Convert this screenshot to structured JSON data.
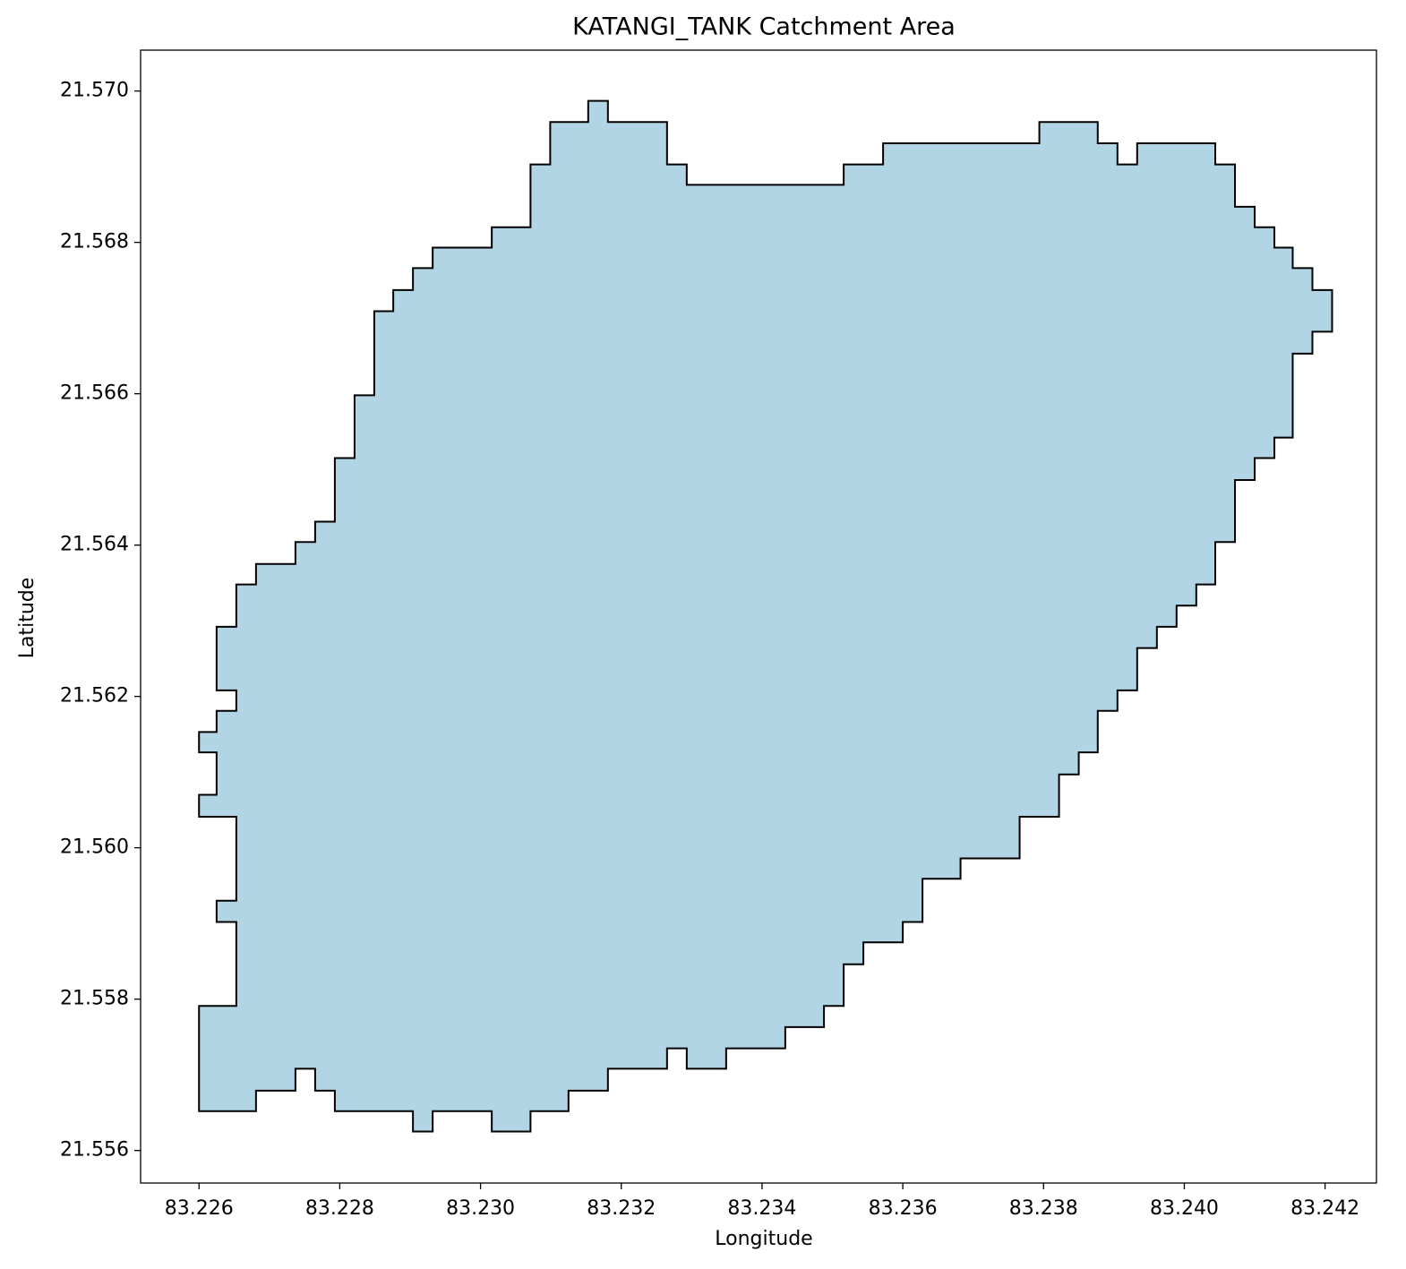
{
  "chart_data": {
    "type": "polygon",
    "title": "KATANGI_TANK Catchment Area",
    "x_label": "Longitude",
    "y_label": "Latitude",
    "fill_color": "#b2d5e5",
    "edge_color": "#000000",
    "grid": false,
    "xlim": [
      83.22517,
      83.24273
    ],
    "ylim": [
      21.55557,
      21.57054
    ],
    "xticks": [
      83.226,
      83.228,
      {
        "value": 83.23,
        "label": "83.230"
      },
      83.232,
      83.234,
      83.236,
      83.238,
      {
        "value": 83.24,
        "label": "83.240"
      },
      83.242
    ],
    "yticks": [
      21.556,
      21.558,
      {
        "value": 21.56,
        "label": "21.560"
      },
      21.562,
      21.564,
      21.566,
      21.568,
      {
        "value": 21.57,
        "label": "21.570"
      }
    ],
    "x": [
      83.226,
      83.226,
      83.22653,
      83.22653,
      83.22625,
      83.22625,
      83.22653,
      83.22653,
      83.226,
      83.226,
      83.22625,
      83.22625,
      83.226,
      83.226,
      83.22625,
      83.22625,
      83.22653,
      83.22653,
      83.22625,
      83.22625,
      83.22653,
      83.22653,
      83.22681,
      83.22681,
      83.22737,
      83.22737,
      83.22765,
      83.22765,
      83.22793,
      83.22793,
      83.22821,
      83.22821,
      83.22849,
      83.22849,
      83.22876,
      83.22876,
      83.22904,
      83.22904,
      83.22932,
      83.22932,
      83.23016,
      83.23016,
      83.23071,
      83.23071,
      83.23099,
      83.23099,
      83.23153,
      83.23153,
      83.23181,
      83.23181,
      83.23265,
      83.23265,
      83.23293,
      83.23293,
      83.23516,
      83.23516,
      83.23572,
      83.23572,
      83.23794,
      83.23794,
      83.23877,
      83.23877,
      83.23905,
      83.23905,
      83.23933,
      83.23933,
      83.24044,
      83.24044,
      83.24072,
      83.24072,
      83.241,
      83.241,
      83.24128,
      83.24128,
      83.24154,
      83.24154,
      83.24182,
      83.24182,
      83.2421,
      83.2421,
      83.24182,
      83.24182,
      83.24154,
      83.24154,
      83.24128,
      83.24128,
      83.241,
      83.241,
      83.24072,
      83.24072,
      83.24044,
      83.24044,
      83.24017,
      83.24017,
      83.23989,
      83.23989,
      83.23961,
      83.23961,
      83.23933,
      83.23933,
      83.23905,
      83.23905,
      83.23877,
      83.23877,
      83.2385,
      83.2385,
      83.23822,
      83.23822,
      83.23766,
      83.23766,
      83.23682,
      83.23682,
      83.23628,
      83.23628,
      83.236,
      83.236,
      83.23544,
      83.23544,
      83.23516,
      83.23516,
      83.23488,
      83.23488,
      83.23433,
      83.23433,
      83.23349,
      83.23349,
      83.23293,
      83.23293,
      83.23265,
      83.23265,
      83.23181,
      83.23181,
      83.23125,
      83.23125,
      83.23071,
      83.23071,
      83.23016,
      83.23016,
      83.22932,
      83.22932,
      83.22904,
      83.22904,
      83.22793,
      83.22793,
      83.22765,
      83.22765,
      83.22737,
      83.22737,
      83.22681,
      83.22681
    ],
    "values": [
      21.55652,
      21.55791,
      21.55791,
      21.55902,
      21.55902,
      21.5593,
      21.5593,
      21.56041,
      21.56041,
      21.5607,
      21.5607,
      21.56126,
      21.56126,
      21.56153,
      21.56153,
      21.56181,
      21.56181,
      21.56208,
      21.56208,
      21.56292,
      21.56292,
      21.56348,
      21.56348,
      21.56375,
      21.56375,
      21.56404,
      21.56404,
      21.56431,
      21.56431,
      21.56515,
      21.56515,
      21.56598,
      21.56598,
      21.56709,
      21.56709,
      21.56737,
      21.56737,
      21.56766,
      21.56766,
      21.56793,
      21.56793,
      21.5682,
      21.5682,
      21.56903,
      21.56903,
      21.56959,
      21.56959,
      21.56987,
      21.56987,
      21.56959,
      21.56959,
      21.56903,
      21.56903,
      21.56876,
      21.56876,
      21.56903,
      21.56903,
      21.56931,
      21.56931,
      21.56959,
      21.56959,
      21.56931,
      21.56931,
      21.56903,
      21.56903,
      21.56931,
      21.56931,
      21.56903,
      21.56903,
      21.56847,
      21.56847,
      21.5682,
      21.5682,
      21.56793,
      21.56793,
      21.56766,
      21.56766,
      21.56737,
      21.56737,
      21.56682,
      21.56682,
      21.56653,
      21.56653,
      21.56542,
      21.56542,
      21.56515,
      21.56515,
      21.56486,
      21.56486,
      21.56404,
      21.56404,
      21.56348,
      21.56348,
      21.5632,
      21.5632,
      21.56292,
      21.56292,
      21.56264,
      21.56264,
      21.56208,
      21.56208,
      21.56181,
      21.56181,
      21.56126,
      21.56126,
      21.56097,
      21.56097,
      21.56041,
      21.56041,
      21.55986,
      21.55986,
      21.55959,
      21.55959,
      21.55902,
      21.55902,
      21.55875,
      21.55875,
      21.55846,
      21.55846,
      21.55791,
      21.55791,
      21.55763,
      21.55763,
      21.55735,
      21.55735,
      21.55708,
      21.55708,
      21.55735,
      21.55735,
      21.55708,
      21.55708,
      21.55679,
      21.55679,
      21.55652,
      21.55652,
      21.55625,
      21.55625,
      21.55652,
      21.55652,
      21.55625,
      21.55625,
      21.55652,
      21.55652,
      21.55679,
      21.55679,
      21.55708,
      21.55708,
      21.55679,
      21.55679,
      21.55652
    ]
  }
}
